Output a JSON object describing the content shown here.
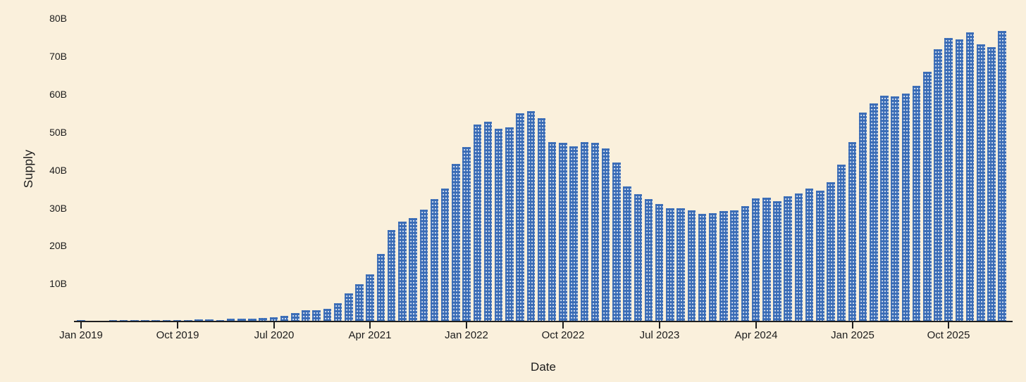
{
  "chart_data": {
    "type": "bar",
    "title": "",
    "xlabel": "Date",
    "ylabel": "Supply",
    "unit": "B",
    "ylim": [
      0,
      80
    ],
    "grid": false,
    "legend": false,
    "y_tick_labels": [
      "10B",
      "20B",
      "30B",
      "40B",
      "50B",
      "60B",
      "70B",
      "80B"
    ],
    "y_tick_values": [
      10,
      20,
      30,
      40,
      50,
      60,
      70,
      80
    ],
    "x_ticks": [
      {
        "bar_index": 0,
        "label": "Jan 2019"
      },
      {
        "bar_index": 9,
        "label": "Oct 2019"
      },
      {
        "bar_index": 18,
        "label": "Jul 2020"
      },
      {
        "bar_index": 27,
        "label": "Apr 2021"
      },
      {
        "bar_index": 36,
        "label": "Jan 2022"
      },
      {
        "bar_index": 45,
        "label": "Oct 2022"
      },
      {
        "bar_index": 54,
        "label": "Jul 2023"
      },
      {
        "bar_index": 63,
        "label": "Apr 2024"
      },
      {
        "bar_index": 72,
        "label": "Jan 2025"
      },
      {
        "bar_index": 81,
        "label": "Oct 2025"
      }
    ],
    "categories": [
      "2019-01",
      "2019-02",
      "2019-03",
      "2019-04",
      "2019-05",
      "2019-06",
      "2019-07",
      "2019-08",
      "2019-09",
      "2019-10",
      "2019-11",
      "2019-12",
      "2020-01",
      "2020-02",
      "2020-03",
      "2020-04",
      "2020-05",
      "2020-06",
      "2020-07",
      "2020-08",
      "2020-09",
      "2020-10",
      "2020-11",
      "2020-12",
      "2021-01",
      "2021-02",
      "2021-03",
      "2021-04",
      "2021-05",
      "2021-06",
      "2021-07",
      "2021-08",
      "2021-09",
      "2021-10",
      "2021-11",
      "2021-12",
      "2022-01",
      "2022-02",
      "2022-03",
      "2022-04",
      "2022-05",
      "2022-06",
      "2022-07",
      "2022-08",
      "2022-09",
      "2022-10",
      "2022-11",
      "2022-12",
      "2023-01",
      "2023-02",
      "2023-03",
      "2023-04",
      "2023-05",
      "2023-06",
      "2023-07",
      "2023-08",
      "2023-09",
      "2023-10",
      "2023-11",
      "2023-12",
      "2024-01",
      "2024-02",
      "2024-03",
      "2024-04",
      "2024-05",
      "2024-06",
      "2024-07",
      "2024-08",
      "2024-09",
      "2024-10",
      "2024-11",
      "2024-12",
      "2025-01",
      "2025-02",
      "2025-03",
      "2025-04",
      "2025-05",
      "2025-06",
      "2025-07",
      "2025-08",
      "2025-09",
      "2025-10",
      "2025-11",
      "2025-12",
      "2026-01",
      "2026-02",
      "2026-03"
    ],
    "values": [
      0.35,
      0.25,
      0.24,
      0.29,
      0.33,
      0.34,
      0.37,
      0.43,
      0.45,
      0.45,
      0.46,
      0.52,
      0.52,
      0.46,
      0.68,
      0.73,
      0.79,
      0.93,
      1.1,
      1.5,
      2.3,
      2.9,
      3.0,
      3.4,
      4.8,
      7.4,
      9.8,
      12.4,
      17.8,
      24.2,
      26.4,
      27.3,
      29.5,
      32.3,
      35.1,
      41.6,
      46.0,
      52.0,
      52.7,
      50.9,
      51.2,
      55.0,
      55.5,
      53.7,
      47.3,
      47.2,
      46.3,
      47.4,
      47.1,
      45.7,
      42.0,
      35.7,
      33.6,
      32.3,
      31.0,
      29.9,
      29.9,
      29.4,
      28.4,
      28.6,
      29.2,
      29.3,
      30.4,
      32.5,
      32.7,
      31.7,
      33.0,
      33.8,
      35.1,
      34.5,
      36.8,
      41.4,
      47.4,
      55.1,
      57.6,
      59.6,
      59.4,
      60.2,
      62.2,
      65.9,
      71.9,
      74.8,
      74.5,
      76.2,
      73.1,
      72.3,
      76.7
    ]
  },
  "colors": {
    "background": "#faf0dc",
    "bar": "#3a6cb6",
    "bar_dot": "#f2f6fb",
    "axis": "#1f1f1f",
    "text": "#1c1c1c"
  }
}
